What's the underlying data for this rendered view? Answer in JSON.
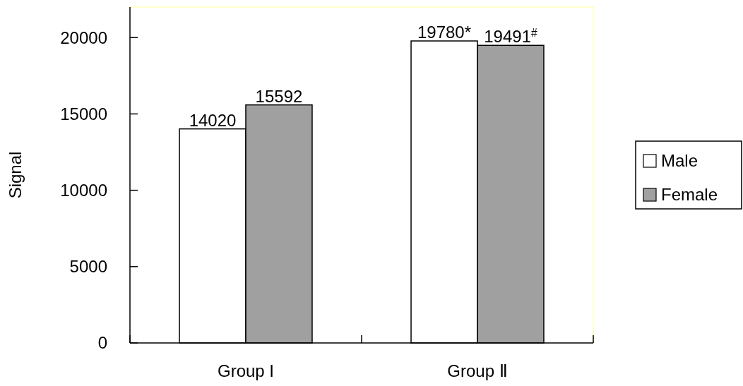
{
  "chart_data": {
    "type": "bar",
    "ylabel": "Signal",
    "categories": [
      "Group I",
      "Group Ⅱ"
    ],
    "series": [
      {
        "name": "Male",
        "color": "#ffffff",
        "values": [
          14020,
          19780
        ],
        "value_labels": [
          "14020",
          "19780*"
        ]
      },
      {
        "name": "Female",
        "color": "#a0a0a0",
        "values": [
          15592,
          19491
        ],
        "value_labels": [
          "15592",
          "19491$^{#}$"
        ]
      }
    ],
    "ylim": [
      0,
      22000
    ],
    "yticks": [
      0,
      5000,
      10000,
      15000,
      20000
    ],
    "grid": false,
    "legend": "right"
  }
}
